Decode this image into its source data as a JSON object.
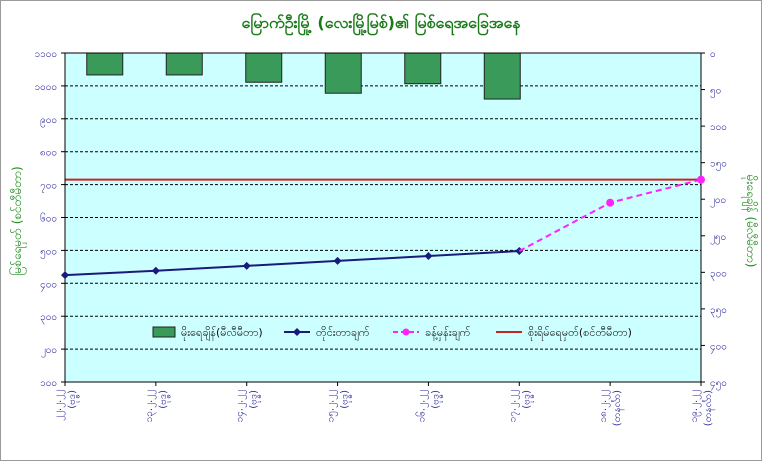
{
  "chart_data": {
    "type": "combo",
    "title": "မြောက်ဦးမြို့ (လေးမြို့မြစ်)၏ မြစ်ရေအခြေအနေ",
    "ylabel_left": "မြစ်ရေမှတ် (စင်တီမီတာ)",
    "ylabel_right": "မိုးရေချိန် (မီလီမီတာ)",
    "ylim_left": [
      100,
      1100
    ],
    "ylim_right": [
      450,
      0
    ],
    "left_ticks": [
      "၁၁၀၀",
      "၁၀၀၀",
      "၉၀၀",
      "၈၀၀",
      "၇၀၀",
      "၆၀၀",
      "၅၀၀",
      "၄၀၀",
      "၃၀၀",
      "၂၀၀",
      "၁၀၀"
    ],
    "right_ticks": [
      "၀",
      "၅၀",
      "၁၀၀",
      "၁၅၀",
      "၂၀၀",
      "၂၅၀",
      "၃၀၀",
      "၃၅၀",
      "၄၀၀",
      "၄၅၀"
    ],
    "categories": [
      [
        "၂၂.၂.၂၂",
        "(ဗုဒ္ဓ)"
      ],
      [
        "၁၃.၂.၂၂",
        "(ဗုဒ္ဓ)"
      ],
      [
        "၁၄.၂.၂၂",
        "(ဗုဒ္ဓ)"
      ],
      [
        "၁၅.၂.၂၂",
        "(ဗုဒ္ဓ)"
      ],
      [
        "၁၆.၂.၂၂",
        "(ဗုဒ္ဓ)"
      ],
      [
        "၁၇.၂.၂၂",
        "(ဗုဒ္ဓ)"
      ],
      [
        "၁၈.၂.၂၂",
        "(တနင်္လာ)"
      ],
      [
        "၁၉.၂.၂၂",
        "(တနင်္လာ)"
      ]
    ],
    "rainfall": {
      "name": "မိုးရေချိန်(မီလီမီတာ)",
      "axis": "right",
      "color": "#3a9a5a",
      "values": [
        30,
        30,
        40,
        55,
        42,
        63,
        null,
        null
      ]
    },
    "observed": {
      "name": "တိုင်းတာချက်",
      "axis": "left",
      "color": "#1a1a7a",
      "values": [
        425,
        438,
        453,
        468,
        483,
        498,
        null,
        null
      ]
    },
    "forecast": {
      "name": "ခန့်မှန်းချက်",
      "axis": "left",
      "color": "#ff22ff",
      "points": [
        [
          6,
          645
        ],
        [
          7,
          715
        ]
      ]
    },
    "danger": {
      "name": "စိုးရိမ်ရေမှတ်(စင်တီမီတာ)",
      "axis": "left",
      "color": "#cc2222",
      "value": 715
    },
    "plot_background": "#ccffff",
    "legend_position": "lower-center",
    "grid": true
  }
}
